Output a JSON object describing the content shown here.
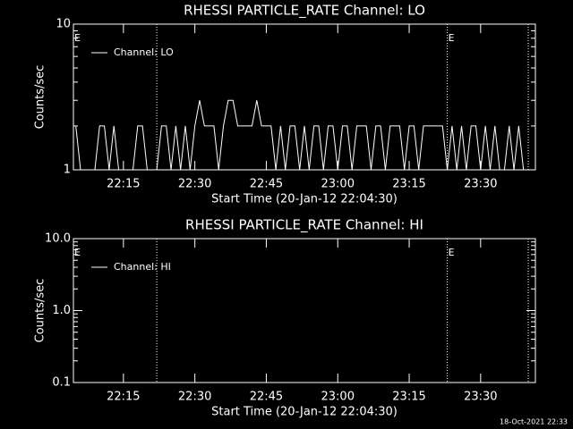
{
  "chart_data": [
    {
      "type": "line",
      "title": "RHESSI PARTICLE_RATE Channel: LO",
      "ylabel": "Counts/sec",
      "xlabel": "Start Time (20-Jan-12 22:04:30)",
      "ylog": true,
      "ylim": [
        1,
        10
      ],
      "yticks": [
        1,
        10
      ],
      "minor_yticks": [
        2,
        3,
        4,
        5,
        6,
        7,
        8,
        9
      ],
      "xlim": [
        "22:04:30",
        "23:41:30"
      ],
      "xticks": [
        "22:15",
        "22:30",
        "22:45",
        "23:00",
        "23:15",
        "23:30"
      ],
      "vlines": [
        "22:22",
        "23:23",
        "23:40"
      ],
      "markers": [
        {
          "x": "22:04:30",
          "label": "E"
        },
        {
          "x": "23:23",
          "label": "E"
        }
      ],
      "legend": "upper left",
      "x": [
        "22:05",
        "22:06",
        "22:07",
        "22:08",
        "22:09",
        "22:10",
        "22:11",
        "22:12",
        "22:13",
        "22:14",
        "22:15",
        "22:16",
        "22:17",
        "22:18",
        "22:19",
        "22:20",
        "22:21",
        "22:22",
        "22:23",
        "22:24",
        "22:25",
        "22:26",
        "22:27",
        "22:28",
        "22:29",
        "22:30",
        "22:31",
        "22:32",
        "22:33",
        "22:34",
        "22:35",
        "22:36",
        "22:37",
        "22:38",
        "22:39",
        "22:40",
        "22:41",
        "22:42",
        "22:43",
        "22:44",
        "22:45",
        "22:46",
        "22:47",
        "22:48",
        "22:49",
        "22:50",
        "22:51",
        "22:52",
        "22:53",
        "22:54",
        "22:55",
        "22:56",
        "22:57",
        "22:58",
        "22:59",
        "23:00",
        "23:01",
        "23:02",
        "23:03",
        "23:04",
        "23:05",
        "23:06",
        "23:07",
        "23:08",
        "23:09",
        "23:10",
        "23:11",
        "23:12",
        "23:13",
        "23:14",
        "23:15",
        "23:16",
        "23:17",
        "23:18",
        "23:19",
        "23:20",
        "23:21",
        "23:22",
        "23:23",
        "23:24",
        "23:25",
        "23:26",
        "23:27",
        "23:28",
        "23:29",
        "23:30",
        "23:31",
        "23:32",
        "23:33",
        "23:34",
        "23:35",
        "23:36",
        "23:37",
        "23:38",
        "23:39",
        "23:40"
      ],
      "series": [
        {
          "name": "Channel: LO",
          "color": "#ffffff",
          "values": [
            2,
            1,
            1,
            1,
            1,
            2,
            2,
            1,
            2,
            1,
            1,
            1,
            1,
            2,
            2,
            1,
            1,
            1,
            2,
            2,
            1,
            2,
            1,
            2,
            1,
            2,
            3,
            2,
            2,
            2,
            1,
            2,
            3,
            3,
            2,
            2,
            2,
            2,
            3,
            2,
            2,
            2,
            1,
            2,
            1,
            2,
            2,
            1,
            2,
            1,
            2,
            2,
            1,
            2,
            2,
            1,
            2,
            2,
            1,
            2,
            2,
            2,
            1,
            2,
            2,
            1,
            2,
            2,
            2,
            1,
            2,
            2,
            1,
            2,
            2,
            2,
            2,
            2,
            1,
            2,
            1,
            2,
            1,
            2,
            2,
            1,
            2,
            1,
            2,
            1,
            1,
            2,
            1,
            2,
            1,
            1
          ]
        }
      ]
    },
    {
      "type": "line",
      "title": "RHESSI PARTICLE_RATE Channel: HI",
      "ylabel": "Counts/sec",
      "xlabel": "Start Time (20-Jan-12 22:04:30)",
      "ylog": true,
      "ylim": [
        0.1,
        10
      ],
      "yticks": [
        {
          "value": 0.1,
          "label": "0.1"
        },
        {
          "value": 1,
          "label": "1.0"
        },
        {
          "value": 10,
          "label": "10.0"
        }
      ],
      "minor_yticks": [
        0.2,
        0.3,
        0.4,
        0.5,
        0.6,
        0.7,
        0.8,
        0.9,
        2,
        3,
        4,
        5,
        6,
        7,
        8,
        9
      ],
      "xlim": [
        "22:04:30",
        "23:41:30"
      ],
      "xticks": [
        "22:15",
        "22:30",
        "22:45",
        "23:00",
        "23:15",
        "23:30"
      ],
      "vlines": [
        "22:22",
        "23:23",
        "23:40"
      ],
      "markers": [
        {
          "x": "22:04:30",
          "label": "E"
        },
        {
          "x": "23:23",
          "label": "E"
        }
      ],
      "legend": "upper left",
      "x": [],
      "series": [
        {
          "name": "Channel: HI",
          "color": "#ffffff",
          "values": []
        }
      ]
    }
  ],
  "footer": "18-Oct-2021 22:33"
}
